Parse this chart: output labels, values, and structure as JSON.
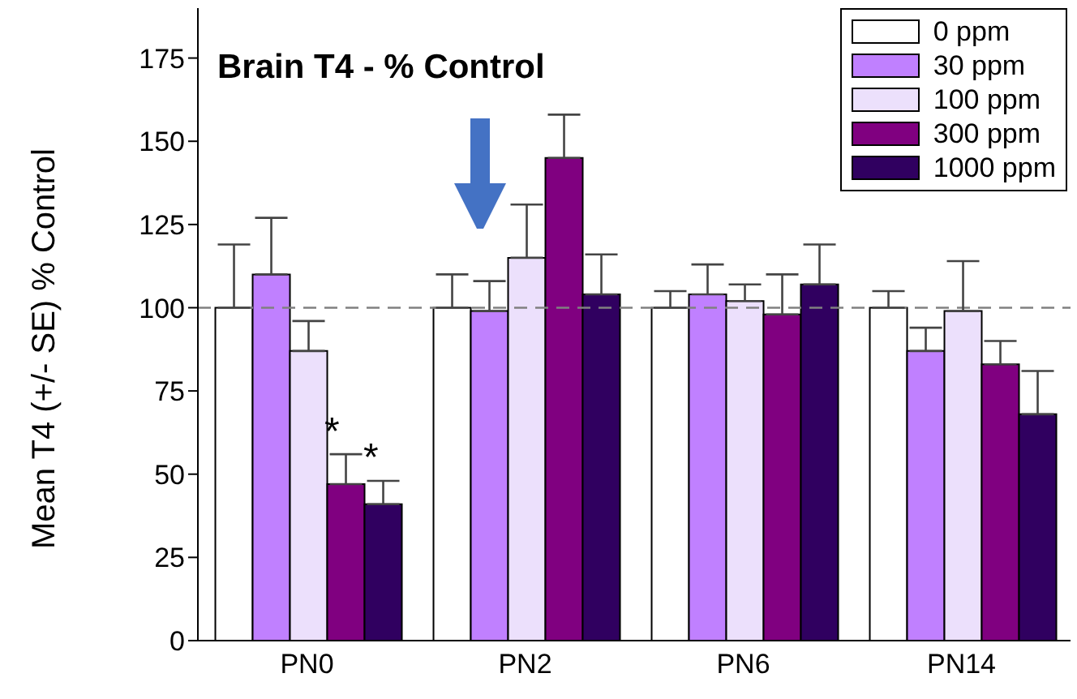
{
  "chart_data": {
    "type": "bar",
    "title": "Brain T4 - % Control",
    "ylabel": "Mean T4 (+/- SE) % Control",
    "categories": [
      "PN0",
      "PN2",
      "PN6",
      "PN14"
    ],
    "series": [
      {
        "name": "0 ppm",
        "color": "#ffffff",
        "values": [
          100,
          100,
          100,
          100
        ],
        "errors": [
          [
            100,
            119
          ],
          [
            100,
            110
          ],
          [
            100,
            105
          ],
          [
            100,
            105
          ]
        ]
      },
      {
        "name": "30 ppm",
        "color": "#c080ff",
        "values": [
          110,
          99,
          104,
          87
        ],
        "errors": [
          [
            110,
            127
          ],
          [
            99,
            108
          ],
          [
            104,
            113
          ],
          [
            87,
            94
          ]
        ]
      },
      {
        "name": "100 ppm",
        "color": "#ece0fc",
        "values": [
          87,
          115,
          102,
          99
        ],
        "errors": [
          [
            87,
            96
          ],
          [
            115,
            131
          ],
          [
            102,
            107
          ],
          [
            99,
            114
          ]
        ]
      },
      {
        "name": "300 ppm",
        "color": "#800080",
        "values": [
          47,
          145,
          98,
          83
        ],
        "errors": [
          [
            47,
            56
          ],
          [
            145,
            158
          ],
          [
            98,
            110
          ],
          [
            83,
            90
          ]
        ]
      },
      {
        "name": "1000 ppm",
        "color": "#300060",
        "values": [
          41,
          104,
          107,
          68
        ],
        "errors": [
          [
            41,
            48
          ],
          [
            104,
            116
          ],
          [
            107,
            119
          ],
          [
            68,
            81
          ]
        ]
      }
    ],
    "ylim": [
      0,
      190
    ],
    "yticks": [
      0,
      25,
      50,
      75,
      100,
      125,
      150,
      175
    ],
    "grid": false,
    "legend": "top right",
    "ref_lines": [
      {
        "axis": "y",
        "value": 100,
        "color": "#808080",
        "line_style": "dashed"
      }
    ],
    "annotations": [
      "*",
      "*"
    ]
  }
}
